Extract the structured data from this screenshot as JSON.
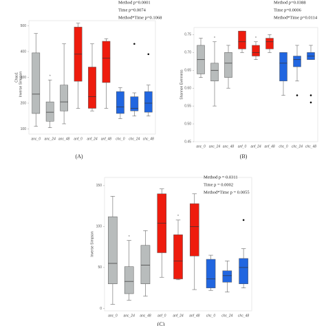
{
  "chart_data": [
    {
      "type": "box",
      "panel_label": "(A)",
      "ylabel": "Chao1",
      "ylabel2": "Inverse Simpson",
      "stats_text": [
        "Method p=0.0001",
        "Time p=0.0074",
        "Method*Time p=0.1068"
      ],
      "categories": [
        "anc_0",
        "anc_24",
        "anc_48",
        "anf_0",
        "anf_24",
        "anf_48",
        "chc_0",
        "chc_24",
        "chc_48"
      ],
      "colors": [
        "#b8bcbc",
        "#b8bcbc",
        "#b8bcbc",
        "#ee1c0e",
        "#ee1c0e",
        "#ee1c0e",
        "#2166e0",
        "#2166e0",
        "#2166e0"
      ],
      "stats": [
        {
          "min": 110,
          "q1": 160,
          "median": 235,
          "q3": 395,
          "max": 470
        },
        {
          "min": 105,
          "q1": 130,
          "median": 165,
          "q3": 205,
          "max": 290
        },
        {
          "min": 120,
          "q1": 170,
          "median": 205,
          "q3": 270,
          "max": 430
        },
        {
          "min": 180,
          "q1": 285,
          "median": 390,
          "q3": 495,
          "max": 510
        },
        {
          "min": 170,
          "q1": 180,
          "median": 225,
          "q3": 340,
          "max": 430
        },
        {
          "min": 180,
          "q1": 280,
          "median": 375,
          "q3": 440,
          "max": 450
        },
        {
          "min": 140,
          "q1": 160,
          "median": 185,
          "q3": 245,
          "max": 260
        },
        {
          "min": 150,
          "q1": 170,
          "median": 180,
          "q3": 225,
          "max": 240,
          "outliers": [
            430
          ]
        },
        {
          "min": 150,
          "q1": 165,
          "median": 200,
          "q3": 245,
          "max": 270,
          "outliers": [
            390
          ]
        }
      ],
      "annotations": [
        {
          "text": "*",
          "category": "anc_24"
        }
      ],
      "ylim": [
        80,
        520
      ],
      "yticks": [
        100,
        200,
        300,
        400,
        500
      ]
    },
    {
      "type": "box",
      "panel_label": "(B)",
      "ylabel": "Shannon Evenness",
      "stats_text": [
        "Method p=0.0388",
        "Time p=0.0006",
        "Method*Time p=0.0114"
      ],
      "categories": [
        "anc_0",
        "anc_24",
        "anc_48",
        "anf_0",
        "anf_24",
        "anf_48",
        "chc_0",
        "chc_24",
        "chc_48"
      ],
      "colors": [
        "#b8bcbc",
        "#b8bcbc",
        "#b8bcbc",
        "#ee1c0e",
        "#ee1c0e",
        "#ee1c0e",
        "#2166e0",
        "#2166e0",
        "#2166e0"
      ],
      "stats": [
        {
          "min": 0.63,
          "q1": 0.64,
          "median": 0.68,
          "q3": 0.72,
          "max": 0.74
        },
        {
          "min": 0.55,
          "q1": 0.62,
          "median": 0.65,
          "q3": 0.67,
          "max": 0.73
        },
        {
          "min": 0.6,
          "q1": 0.63,
          "median": 0.67,
          "q3": 0.7,
          "max": 0.72
        },
        {
          "min": 0.7,
          "q1": 0.71,
          "median": 0.73,
          "q3": 0.76,
          "max": 0.76
        },
        {
          "min": 0.68,
          "q1": 0.69,
          "median": 0.7,
          "q3": 0.72,
          "max": 0.73
        },
        {
          "min": 0.7,
          "q1": 0.71,
          "median": 0.73,
          "q3": 0.74,
          "max": 0.75
        },
        {
          "min": 0.58,
          "q1": 0.62,
          "median": 0.67,
          "q3": 0.7,
          "max": 0.7
        },
        {
          "min": 0.62,
          "q1": 0.66,
          "median": 0.68,
          "q3": 0.69,
          "max": 0.72,
          "outliers": [
            0.58
          ]
        },
        {
          "min": 0.68,
          "q1": 0.68,
          "median": 0.69,
          "q3": 0.7,
          "max": 0.72,
          "outliers": [
            0.58,
            0.56
          ]
        }
      ],
      "annotations": [
        {
          "text": "*",
          "category": "anc_24"
        },
        {
          "text": "*",
          "category": "anf_24"
        }
      ],
      "ylim": [
        0.45,
        0.77
      ],
      "yticks": [
        0.45,
        {
          "value": 0.5,
          "label": "0.50"
        },
        0.55,
        {
          "value": 0.6,
          "label": "0.60"
        },
        0.65,
        {
          "value": 0.7,
          "label": "0.70"
        },
        0.75
      ]
    },
    {
      "type": "box",
      "panel_label": "(C)",
      "ylabel": "Inverse Simpson",
      "stats_text": [
        "Method p = 0.0311",
        "Time p = 0.0002",
        "Method*Time p = 0.0055"
      ],
      "categories": [
        "anc_0",
        "anc_24",
        "anc_48",
        "anf_0",
        "anf_24",
        "anf_48",
        "chc_0",
        "chc_24",
        "chc_48"
      ],
      "colors": [
        "#b8bcbc",
        "#b8bcbc",
        "#b8bcbc",
        "#ee1c0e",
        "#ee1c0e",
        "#ee1c0e",
        "#2166e0",
        "#2166e0",
        "#2166e0"
      ],
      "stats": [
        {
          "min": 5,
          "q1": 30,
          "median": 55,
          "q3": 112,
          "max": 137
        },
        {
          "min": 10,
          "q1": 18,
          "median": 33,
          "q3": 51,
          "max": 83
        },
        {
          "min": 15,
          "q1": 30,
          "median": 53,
          "q3": 77,
          "max": 95
        },
        {
          "min": 38,
          "q1": 68,
          "median": 104,
          "q3": 140,
          "max": 146
        },
        {
          "min": 35,
          "q1": 36,
          "median": 58,
          "q3": 90,
          "max": 108
        },
        {
          "min": 23,
          "q1": 64,
          "median": 100,
          "q3": 128,
          "max": 140
        },
        {
          "min": 22,
          "q1": 25,
          "median": 36,
          "q3": 60,
          "max": 65
        },
        {
          "min": 20,
          "q1": 32,
          "median": 40,
          "q3": 46,
          "max": 58
        },
        {
          "min": 25,
          "q1": 30,
          "median": 50,
          "q3": 61,
          "max": 73,
          "outliers": [
            108
          ]
        }
      ],
      "annotations": [
        {
          "text": "*",
          "category": "anc_24"
        },
        {
          "text": "*",
          "category": "anf_24"
        }
      ],
      "ylim": [
        -3,
        160
      ],
      "yticks": [
        0,
        50,
        100,
        150
      ]
    }
  ]
}
